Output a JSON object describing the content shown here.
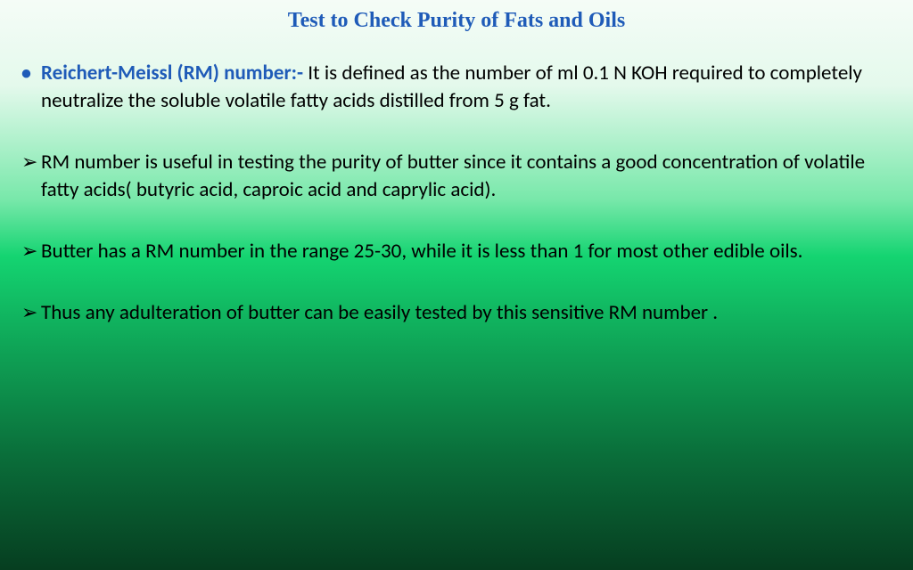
{
  "title": "Test to Check Purity of Fats and Oils",
  "colors": {
    "title_color": "#1f5bb8",
    "heading_color": "#1f5bb8",
    "body_text": "#000000",
    "bullet_dot": "#1f5bb8",
    "gradient_stops": [
      "#f5fcf7",
      "#e4f9ec",
      "#78e8aa",
      "#14d471",
      "#0fa758",
      "#0a6e3a",
      "#063e20"
    ]
  },
  "typography": {
    "title_font": "Times New Roman",
    "title_size_pt": 18,
    "body_font": "Calibri",
    "body_size_pt": 17
  },
  "item1": {
    "heading": "Reichert-Meissl (RM) number:- ",
    "body": "It is defined as the number of ml 0.1 N KOH required to completely neutralize the soluble volatile fatty acids distilled from 5 g fat."
  },
  "item2": {
    "body": "RM number is useful in testing the purity of butter since it contains a good concentration of volatile fatty acids( butyric acid, caproic acid and caprylic acid)."
  },
  "item3": {
    "body": "Butter has a RM number in the range 25-30, while it is less than 1 for most other edible oils."
  },
  "item4": {
    "body": "Thus any adulteration of butter can be easily tested by this sensitive RM number ."
  }
}
